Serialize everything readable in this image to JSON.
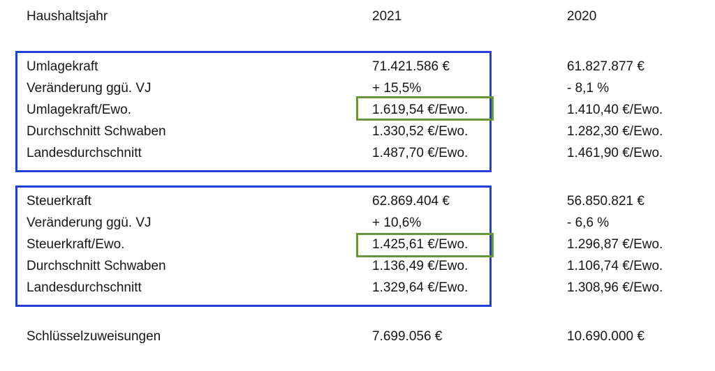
{
  "colors": {
    "background": "#ffffff",
    "text": "#161616",
    "highlight_blue": "#1e40d8",
    "highlight_green": "#68963c"
  },
  "table": {
    "rows": [
      {
        "label": "Haushaltsjahr",
        "y2021": "2021",
        "y2020": "2020"
      },
      {
        "label": "Umlagekraft",
        "y2021": "71.421.586 €",
        "y2020": "61.827.877 €"
      },
      {
        "label": "Veränderung ggü. VJ",
        "y2021": "+ 15,5%",
        "y2020": "- 8,1 %"
      },
      {
        "label": "Umlagekraft/Ewo.",
        "y2021": "1.619,54 €/Ewo.",
        "y2020": "1.410,40 €/Ewo."
      },
      {
        "label": "Durchschnitt Schwaben",
        "y2021": "1.330,52 €/Ewo.",
        "y2020": "1.282,30 €/Ewo."
      },
      {
        "label": "Landesdurchschnitt",
        "y2021": "1.487,70 €/Ewo.",
        "y2020": "1.461,90 €/Ewo."
      },
      {
        "label": "Steuerkraft",
        "y2021": "62.869.404 €",
        "y2020": "56.850.821 €"
      },
      {
        "label": "Veränderung ggü. VJ",
        "y2021": "+ 10,6%",
        "y2020": "- 6,6 %"
      },
      {
        "label": "Steuerkraft/Ewo.",
        "y2021": "1.425,61 €/Ewo.",
        "y2020": "1.296,87 €/Ewo."
      },
      {
        "label": "Durchschnitt Schwaben",
        "y2021": "1.136,49 €/Ewo.",
        "y2020": "1.106,74 €/Ewo."
      },
      {
        "label": "Landesdurchschnitt",
        "y2021": "1.329,64 €/Ewo.",
        "y2020": "1.308,96 €/Ewo."
      },
      {
        "label": "Schlüsselzuweisungen",
        "y2021": "7.699.056 €",
        "y2020": "10.690.000 €"
      }
    ],
    "highlighted_green_values": [
      "1.619,54 €/Ewo.",
      "1.425,61 €/Ewo."
    ]
  }
}
